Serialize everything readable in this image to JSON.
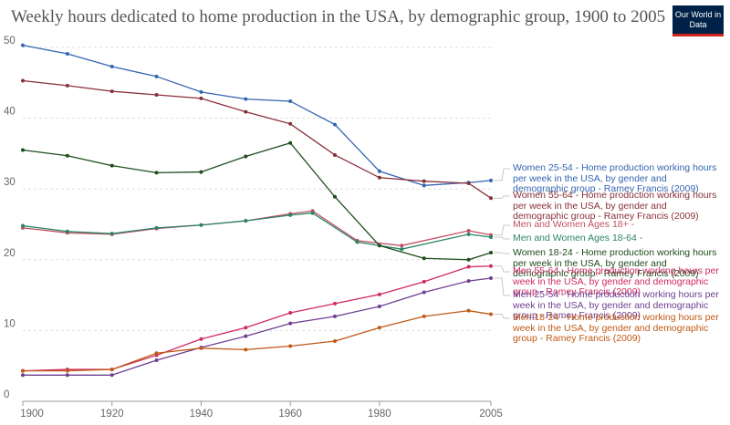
{
  "logo": "Our World in Data",
  "chart_data": {
    "type": "line",
    "title": "Weekly hours dedicated to home production in the USA, by demographic group, 1900 to 2005",
    "xlim": [
      1900,
      2005
    ],
    "xticks": [
      1900,
      1920,
      1940,
      1960,
      1980,
      2005
    ],
    "ylim": [
      0,
      50
    ],
    "yticks": [
      0,
      10,
      20,
      30,
      40,
      50
    ],
    "grid": true,
    "series": [
      {
        "name": "Women 25-54 - Home production working hours per week in the USA, by gender and demographic group - Ramey Francis (2009)",
        "color": "#3465b0",
        "x": [
          1900,
          1910,
          1920,
          1930,
          1940,
          1950,
          1960,
          1970,
          1980,
          1990,
          2000,
          2005
        ],
        "values": [
          50.3,
          49.1,
          47.3,
          45.9,
          43.7,
          42.7,
          42.4,
          39.1,
          32.5,
          30.5,
          30.9,
          31.2
        ]
      },
      {
        "name": "Women 55-64 - Home production working hours per week in the USA, by gender and demographic group - Ramey Francis (2009)",
        "color": "#883039",
        "x": [
          1900,
          1910,
          1920,
          1930,
          1940,
          1950,
          1960,
          1970,
          1980,
          1990,
          2000,
          2005
        ],
        "values": [
          45.3,
          44.6,
          43.8,
          43.3,
          42.8,
          40.9,
          39.2,
          34.8,
          31.6,
          31.1,
          30.8,
          28.7
        ]
      },
      {
        "name": "Men and Women Ages 18+ -",
        "color": "#c15065",
        "x": [
          1900,
          1910,
          1920,
          1930,
          1940,
          1950,
          1960,
          1965,
          1975,
          1985,
          2000,
          2005
        ],
        "values": [
          24.5,
          23.8,
          23.6,
          24.4,
          24.9,
          25.5,
          26.5,
          26.9,
          22.7,
          22.0,
          24.1,
          23.5
        ]
      },
      {
        "name": "Men and Women Ages 18-64 -",
        "color": "#2c8465",
        "x": [
          1900,
          1910,
          1920,
          1930,
          1940,
          1950,
          1960,
          1965,
          1975,
          1985,
          2000,
          2005
        ],
        "values": [
          24.8,
          24.0,
          23.7,
          24.5,
          24.9,
          25.5,
          26.3,
          26.6,
          22.5,
          21.5,
          23.6,
          23.2
        ]
      },
      {
        "name": "Women 18-24 - Home production working hours per week in the USA, by gender and demographic group - Ramey Francis (2009)",
        "color": "#1d4d1a",
        "x": [
          1900,
          1910,
          1920,
          1930,
          1940,
          1950,
          1960,
          1970,
          1980,
          1990,
          2000,
          2005
        ],
        "values": [
          35.5,
          34.7,
          33.3,
          32.3,
          32.4,
          34.6,
          36.5,
          28.9,
          22.0,
          20.2,
          20.0,
          21.0
        ]
      },
      {
        "name": "Men 55-64 - Home production working hours per week in the USA, by gender and demographic group - Ramey Francis (2009)",
        "color": "#cf2a63",
        "x": [
          1900,
          1910,
          1920,
          1930,
          1940,
          1950,
          1960,
          1970,
          1980,
          1990,
          2000,
          2005
        ],
        "values": [
          4.3,
          4.5,
          4.5,
          6.5,
          8.8,
          10.4,
          12.5,
          13.8,
          15.1,
          16.9,
          19.0,
          19.1
        ]
      },
      {
        "name": "Men 25-54 - Home production working hours per week in the USA, by gender and demographic group - Ramey Francis (2009)",
        "color": "#6d3e91",
        "x": [
          1900,
          1910,
          1920,
          1930,
          1940,
          1950,
          1960,
          1970,
          1980,
          1990,
          2000,
          2005
        ],
        "values": [
          3.7,
          3.7,
          3.7,
          5.8,
          7.6,
          9.2,
          11.0,
          12.0,
          13.4,
          15.4,
          17.0,
          17.4
        ]
      },
      {
        "name": "Men 18-24 - Home production working hours per week in the USA, by gender and demographic group - Ramey Francis (2009)",
        "color": "#c05917",
        "x": [
          1900,
          1910,
          1920,
          1930,
          1940,
          1950,
          1960,
          1970,
          1980,
          1990,
          2000,
          2005
        ],
        "values": [
          4.3,
          4.3,
          4.5,
          6.8,
          7.5,
          7.3,
          7.8,
          8.5,
          10.4,
          12.0,
          12.8,
          12.3
        ]
      }
    ]
  }
}
